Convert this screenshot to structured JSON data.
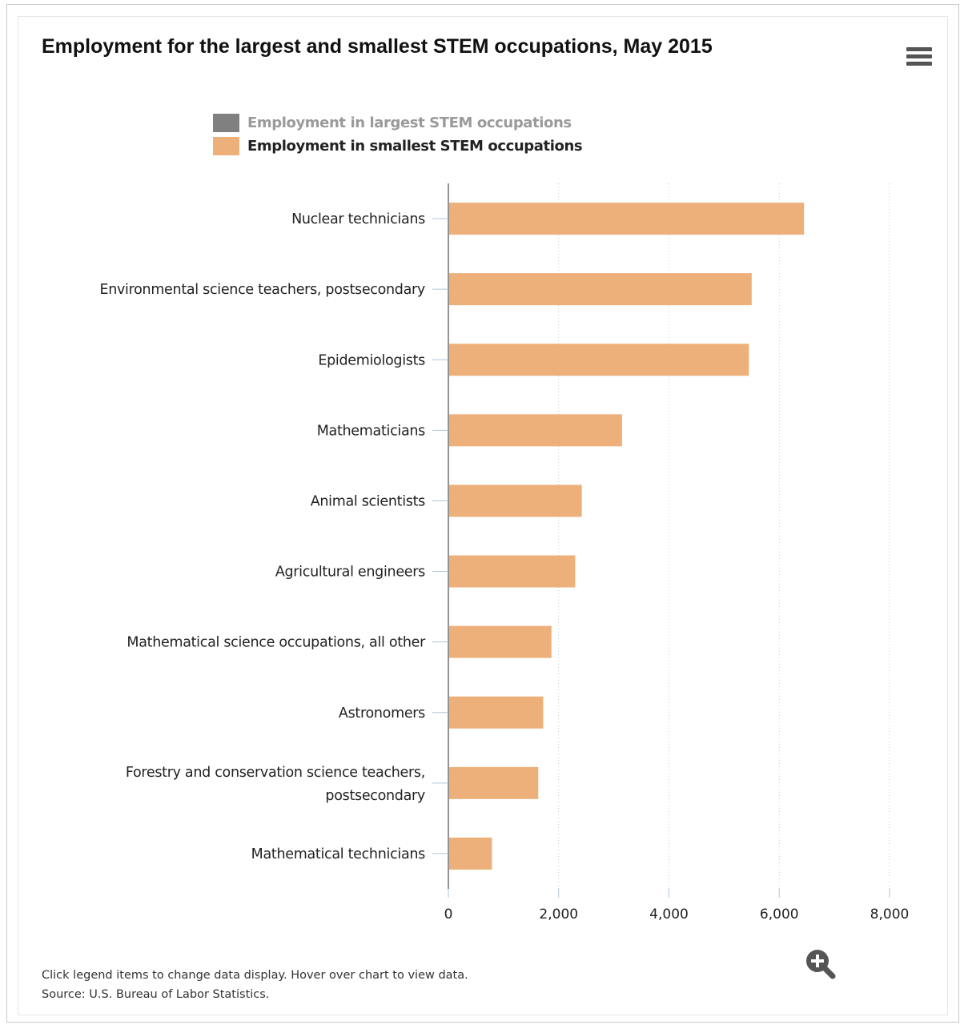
{
  "header": {
    "title": "Employment for the largest and smallest STEM occupations, May 2015"
  },
  "legend": [
    {
      "label": "Employment in largest STEM occupations",
      "color": "#808080",
      "state": "hidden"
    },
    {
      "label": "Employment in smallest STEM occupations",
      "color": "#edb07a",
      "state": "active"
    }
  ],
  "footer": {
    "note": "Click legend items to change data display. Hover over chart to view data.",
    "source": "Source: U.S. Bureau of Labor Statistics."
  },
  "icons": {
    "menu": "hamburger-menu-icon",
    "zoom": "zoom-in-magnifier-icon"
  },
  "chart_data": {
    "type": "bar",
    "orientation": "horizontal",
    "title": "Employment for the largest and smallest STEM occupations, May 2015",
    "xlabel": "",
    "ylabel": "",
    "xlim": [
      0,
      8000
    ],
    "ticks": [
      "0",
      "2,000",
      "4,000",
      "6,000",
      "8,000"
    ],
    "grid": "vertical dotted",
    "categories": [
      [
        "Nuclear technicians"
      ],
      [
        "Environmental science teachers, postsecondary"
      ],
      [
        "Epidemiologists"
      ],
      [
        "Mathematicians"
      ],
      [
        "Animal scientists"
      ],
      [
        "Agricultural engineers"
      ],
      [
        "Mathematical science occupations, all other"
      ],
      [
        "Astronomers"
      ],
      [
        "Forestry and conservation science teachers,",
        "postsecondary"
      ],
      [
        "Mathematical technicians"
      ]
    ],
    "series": [
      {
        "name": "Employment in smallest STEM occupations",
        "color": "#edb07a",
        "values": [
          6450,
          5500,
          5450,
          3150,
          2420,
          2300,
          1870,
          1720,
          1630,
          790
        ]
      }
    ]
  }
}
